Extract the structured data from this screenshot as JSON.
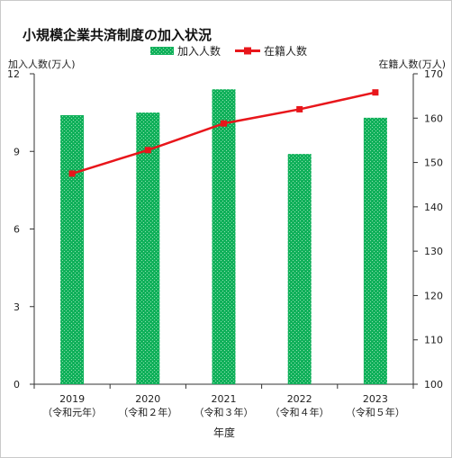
{
  "chart_data": {
    "type": "bar",
    "title": "小規模企業共済制度の加入状況",
    "categories": [
      "2019",
      "2020",
      "2021",
      "2022",
      "2023"
    ],
    "category_sublabels": [
      "（令和元年）",
      "（令和２年）",
      "（令和３年）",
      "（令和４年）",
      "（令和５年）"
    ],
    "xlabel": "年度",
    "ylabel_left": "加入人数(万人)",
    "ylabel_right": "在籍人数(万人)",
    "ylim_left": [
      0,
      12
    ],
    "ylim_right": [
      100,
      170
    ],
    "yticks_left": [
      0,
      3,
      6,
      9,
      12
    ],
    "yticks_right": [
      100,
      110,
      120,
      130,
      140,
      150,
      160,
      170
    ],
    "legend_position": "top-center",
    "grid": false,
    "series": [
      {
        "name": "加入人数",
        "kind": "bar",
        "axis": "left",
        "color": "#10b05a",
        "values": [
          10.4,
          10.5,
          11.4,
          8.9,
          10.3
        ]
      },
      {
        "name": "在籍人数",
        "kind": "line",
        "axis": "right",
        "color": "#e8161b",
        "values": [
          147.5,
          152.8,
          158.8,
          162.0,
          165.8
        ]
      }
    ]
  }
}
